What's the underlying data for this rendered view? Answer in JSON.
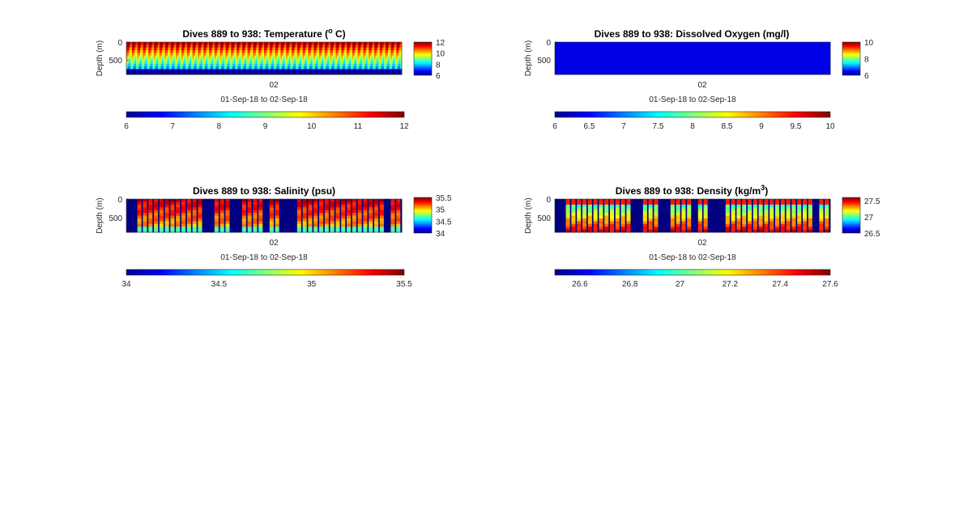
{
  "figure": {
    "background": "#ffffff",
    "colormap": "jet"
  },
  "chart_data": [
    {
      "type": "heatmap",
      "id": "temperature",
      "title_parts": {
        "pre": "Dives 889 to 938: Temperature (",
        "sup": "o",
        "post": " C)"
      },
      "ylabel": "Depth (m)",
      "yticks": [
        0,
        500
      ],
      "ylim": [
        0,
        900
      ],
      "xticks": [
        "02"
      ],
      "xlabel": "01-Sep-18 to 02-Sep-18",
      "clim": [
        6,
        12
      ],
      "colorbar_side_ticks": [
        6,
        8,
        10,
        12
      ],
      "colorbar_bottom_ticks": [
        6,
        7,
        8,
        9,
        10,
        11,
        12
      ],
      "pattern": "temperature"
    },
    {
      "type": "heatmap",
      "id": "oxygen",
      "title": "Dives 889 to 938: Dissolved Oxygen (mg/l)",
      "ylabel": "Depth (m)",
      "yticks": [
        0,
        500
      ],
      "ylim": [
        0,
        900
      ],
      "xticks": [
        "02"
      ],
      "xlabel": "01-Sep-18 to 02-Sep-18",
      "clim": [
        6,
        10
      ],
      "colorbar_side_ticks": [
        6,
        8,
        10
      ],
      "colorbar_bottom_ticks": [
        6,
        6.5,
        7,
        7.5,
        8,
        8.5,
        9,
        9.5,
        10
      ],
      "pattern": "uniform-min"
    },
    {
      "type": "heatmap",
      "id": "salinity",
      "title": "Dives 889 to 938: Salinity (psu)",
      "ylabel": "Depth (m)",
      "yticks": [
        0,
        500
      ],
      "ylim": [
        0,
        900
      ],
      "xticks": [
        "02"
      ],
      "xlabel": "01-Sep-18 to 02-Sep-18",
      "clim": [
        34,
        35.5
      ],
      "colorbar_side_ticks": [
        34,
        34.5,
        35,
        35.5
      ],
      "colorbar_bottom_ticks": [
        34,
        34.5,
        35,
        35.5
      ],
      "pattern": "salinity"
    },
    {
      "type": "heatmap",
      "id": "density",
      "title_parts": {
        "pre": "Dives 889 to 938: Density (kg/m",
        "sup": "3",
        "post": ")"
      },
      "ylabel": "Depth (m)",
      "yticks": [
        0,
        500
      ],
      "ylim": [
        0,
        900
      ],
      "xticks": [
        "02"
      ],
      "xlabel": "01-Sep-18 to 02-Sep-18",
      "clim": [
        26.5,
        27.6
      ],
      "colorbar_side_ticks": [
        26.5,
        27,
        27.5
      ],
      "colorbar_bottom_ticks": [
        26.6,
        26.8,
        27,
        27.2,
        27.4,
        27.6
      ],
      "pattern": "density"
    }
  ]
}
